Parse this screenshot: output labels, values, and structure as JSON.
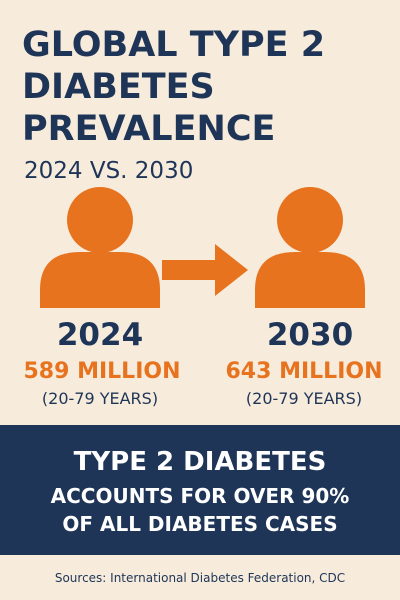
{
  "header": {
    "title_lines": [
      "GLOBAL TYPE 2",
      "DIABETES",
      "PREVALENCE"
    ],
    "subtitle": "2024 VS. 2030"
  },
  "panels": [
    {
      "year": "2024",
      "value": "589 MILLION",
      "note": "(20-79 YEARS)"
    },
    {
      "year": "2030",
      "value": "643 MILLION",
      "note": "(20-79 YEARS)"
    }
  ],
  "banner": {
    "lines": [
      "TYPE 2 DIABETES",
      "ACCOUNTS FOR OVER 90%",
      "OF ALL DIABETES CASES"
    ]
  },
  "footer": {
    "sources": "Sources: International Diabetes Federation, CDC"
  }
}
